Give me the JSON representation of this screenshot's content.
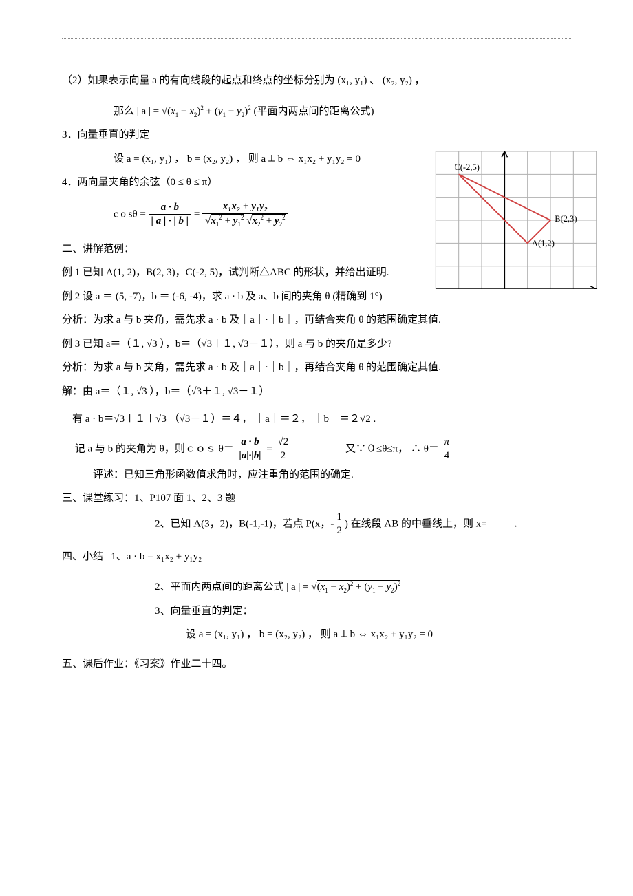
{
  "topitem": "（2）如果表示向量 a 的有向线段的起点和终点的坐标分别为 (x₁, y₁) 、 (x₂, y₂) ，",
  "dist_formula_lead": "那么 | a | =",
  "dist_formula_tail": " (平面内两点间的距离公式)",
  "item3": "3．向量垂直的判定",
  "perp_formula": "设 a = (x₁, y₁) ， b = (x₂, y₂) ， 则 a ⟂ b  ⇔ x₁x₂ + y₁y₂ = 0",
  "item4": "4．两向量夹角的余弦（0 ≤ θ ≤ π）",
  "cos_lead": "c o sθ  =",
  "cos_mid": "a · b",
  "cos_mid_den": "| a | · | b |",
  "cos_rhs_num": "x₁x₂ + y₁y₂",
  "graph": {
    "points": {
      "A": {
        "label": "A(1,2)",
        "x": 1,
        "y": 2,
        "color": "#d04040"
      },
      "B": {
        "label": "B(2,3)",
        "x": 2,
        "y": 3,
        "color": "#d04040"
      },
      "C": {
        "label": "C(-2,5)",
        "x": -2,
        "y": 5,
        "color": "#d04040"
      }
    },
    "xlim": [
      -3,
      4
    ],
    "ylim": [
      0,
      6
    ],
    "grid_color": "#b0b0b0",
    "axis_color": "#000000",
    "line_color": "#d04040",
    "cell_size": 32,
    "label_fontsize": 12,
    "label_font": "serif",
    "label_color": "#000000"
  },
  "section2": "二、讲解范例：",
  "ex1": "例 1  已知 A(1,  2)，B(2,  3)，C(-2,  5)，试判断△ABC 的形状，并给出证明.",
  "ex2": "例 2   设 a ＝ (5,  -7)，b ＝ (-6,  -4)，求 a · b 及 a、b 间的夹角 θ (精确到 1°)",
  "ex2_analyze": "分析：为求 a 与 b 夹角，需先求 a · b 及｜a｜·｜b｜，再结合夹角 θ 的范围确定其值.",
  "ex3_lead": "例 3  已知 a＝（１, √3 ），b＝（√3＋１, √3－１），则 a 与 b 的夹角是多少?",
  "ex3_analyze": "分析：为求 a 与 b 夹角，需先求 a · b 及｜a｜·｜b｜，再结合夹角 θ 的范围确定其值.",
  "ex3_sol1": "解：由 a＝（１, √3 ），b＝（√3＋１, √3－１）",
  "ex3_sol2": "　有 a · b＝√3＋１＋√3 （√3－１）＝４， ｜a｜＝２， ｜b｜＝２√2 .",
  "ex3_sol3_lead": "　 记 a 与 b 的夹角为 θ，则ｃｏｓ θ＝",
  "ex3_sol3_rhs": "　　　　　又∵０≤θ≤π， ∴ θ＝",
  "ex3_review": "　　　评述：已知三角形函数值求角时，应注重角的范围的确定.",
  "section3": "三、课堂练习：1、P107 面 1、2、3 题",
  "practice2_lead": "2、已知 A(3，2)，B(-1,-1)，若点 P(x，-",
  "practice2_tail": ") 在线段 AB 的中垂线上，则 x=",
  "practice2_end": ".",
  "section4": "四、小结",
  "summary1": "1、a · b = x₁x₂ + y₁y₂",
  "summary2_lead": "2、平面内两点间的距离公式  | a | =",
  "summary3": "3、向量垂直的判定：",
  "summary3_formula": "设 a = (x₁, y₁) ， b = (x₂, y₂) ， 则 a ⟂ b   ⇔ x₁x₂ + y₁y₂ = 0",
  "section5": "五、课后作业：《习案》作业二十四。",
  "sqrt2_over_2_num": "√2",
  "sqrt2_over_2_den": "2",
  "pi_over_4_num": "π",
  "pi_over_4_den": "4",
  "frac_half_num": "1",
  "frac_half_den": "2"
}
